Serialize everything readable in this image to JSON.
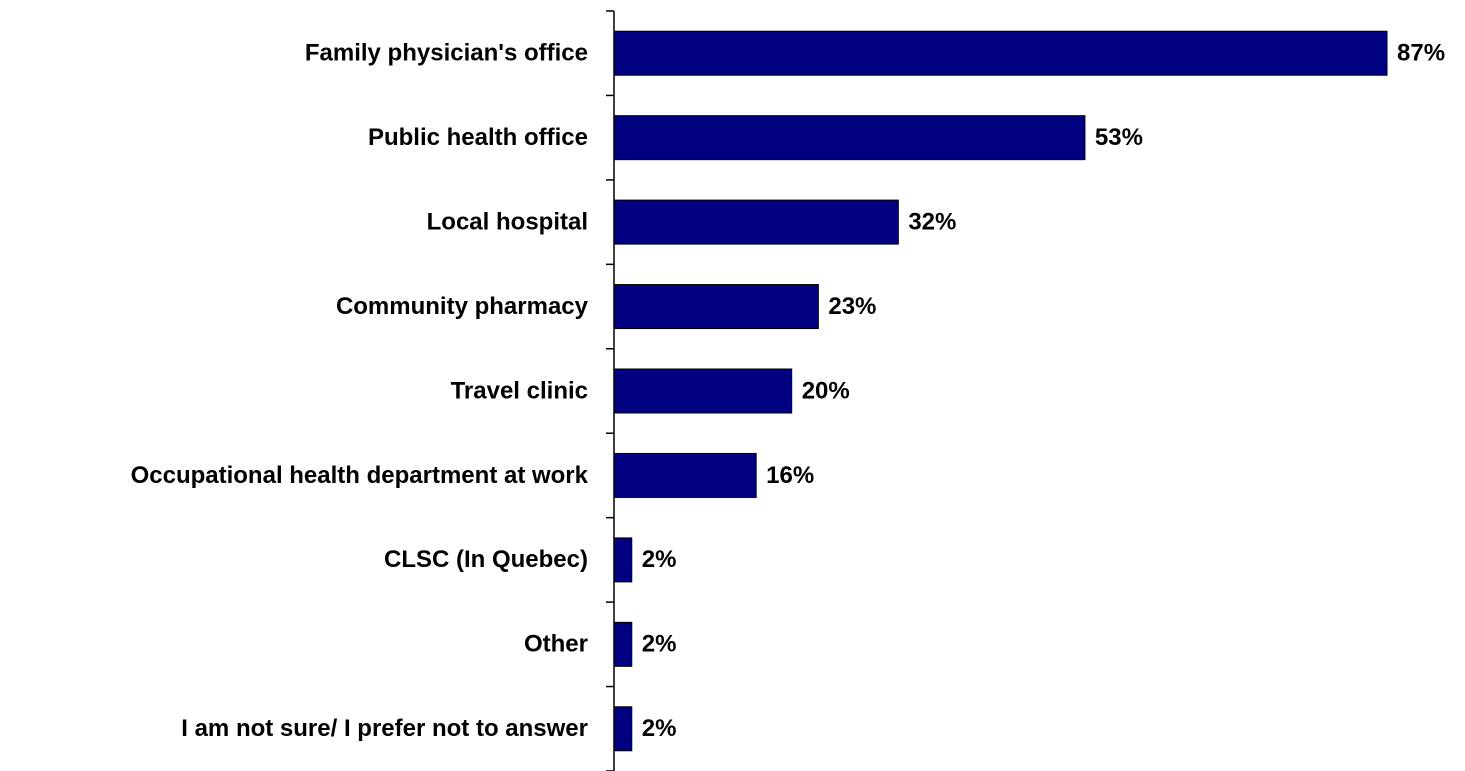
{
  "chart_data": {
    "type": "bar",
    "orientation": "horizontal",
    "categories": [
      "Family physician's office",
      "Public health office",
      "Local hospital",
      "Community pharmacy",
      "Travel clinic",
      "Occupational health department at work",
      "CLSC (In Quebec)",
      "Other",
      "I am not sure/ I prefer not to answer"
    ],
    "values": [
      87,
      53,
      32,
      23,
      20,
      16,
      2,
      2,
      2
    ],
    "value_labels": [
      "87%",
      "53%",
      "32%",
      "23%",
      "20%",
      "16%",
      "2%",
      "2%",
      "2%"
    ],
    "color": "#000080"
  }
}
